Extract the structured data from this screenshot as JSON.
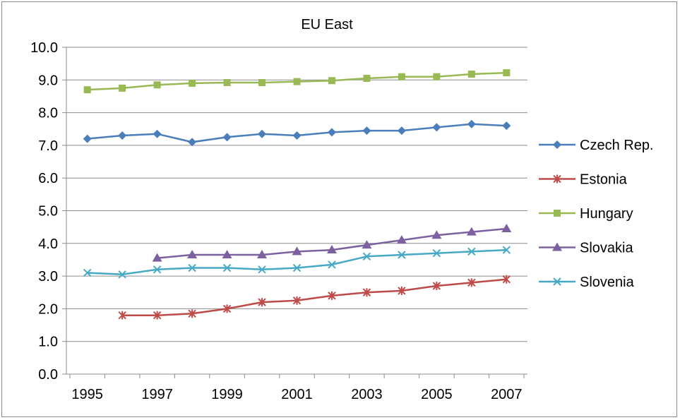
{
  "chart_data": {
    "type": "line",
    "title": "EU East",
    "xlabel": "",
    "ylabel": "",
    "x": [
      1995,
      1996,
      1997,
      1998,
      1999,
      2000,
      2001,
      2002,
      2003,
      2004,
      2005,
      2006,
      2007
    ],
    "x_tick_labels": [
      "1995",
      "1997",
      "1999",
      "2001",
      "2003",
      "2005",
      "2007"
    ],
    "y_tick_labels": [
      "0.0",
      "1.0",
      "2.0",
      "3.0",
      "4.0",
      "5.0",
      "6.0",
      "7.0",
      "8.0",
      "9.0",
      "10.0"
    ],
    "ylim": [
      0,
      10
    ],
    "grid": "horizontal",
    "legend": "right",
    "series": [
      {
        "name": "Czech Rep.",
        "color": "#4a7ebb",
        "marker": "diamond",
        "values": [
          7.2,
          7.3,
          7.35,
          7.1,
          7.25,
          7.35,
          7.3,
          7.4,
          7.45,
          7.45,
          7.55,
          7.65,
          7.6
        ]
      },
      {
        "name": "Estonia",
        "color": "#be4b48",
        "marker": "asterisk",
        "values": [
          null,
          1.8,
          1.8,
          1.85,
          2.0,
          2.2,
          2.25,
          2.4,
          2.5,
          2.55,
          2.7,
          2.8,
          2.9
        ]
      },
      {
        "name": "Hungary",
        "color": "#98b954",
        "marker": "square",
        "values": [
          8.7,
          8.75,
          8.85,
          8.9,
          8.92,
          8.92,
          8.95,
          8.98,
          9.05,
          9.1,
          9.1,
          9.18,
          9.22
        ]
      },
      {
        "name": "Slovakia",
        "color": "#7d60a0",
        "marker": "triangle",
        "values": [
          null,
          null,
          3.55,
          3.65,
          3.65,
          3.65,
          3.75,
          3.8,
          3.95,
          4.1,
          4.25,
          4.35,
          4.45
        ]
      },
      {
        "name": "Slovenia",
        "color": "#46aac5",
        "marker": "x",
        "values": [
          3.1,
          3.05,
          3.2,
          3.25,
          3.25,
          3.2,
          3.25,
          3.35,
          3.6,
          3.65,
          3.7,
          3.75,
          3.8
        ]
      }
    ]
  }
}
